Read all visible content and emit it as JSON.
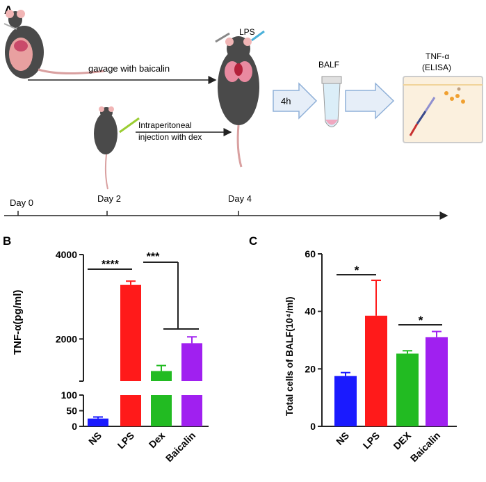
{
  "panels": {
    "a": "A",
    "b": "B",
    "c": "C"
  },
  "workflow": {
    "gavage_label": "gavage with baicalin",
    "ip_label_1": "Intraperitoneal",
    "ip_label_2": "injection with dex",
    "lps_label": "LPS",
    "time_label": "4h",
    "balf_label": "BALF",
    "tnf_label": "TNF-α",
    "elisa_label": "(ELISA)",
    "days": [
      "Day 0",
      "Day 2",
      "Day 4"
    ]
  },
  "chart_data": [
    {
      "type": "bar",
      "ylabel": "TNF-α(pg/ml)",
      "categories": [
        "NS",
        "LPS",
        "Dex",
        "Baicalin"
      ],
      "values": [
        25,
        3280,
        1240,
        1900
      ],
      "errors": [
        5,
        90,
        130,
        150
      ],
      "colors": [
        "#1a1aff",
        "#ff1a1a",
        "#22bb22",
        "#a020f0"
      ],
      "y_break": {
        "lower": [
          0,
          100
        ],
        "upper": [
          1000,
          4000
        ]
      },
      "lower_ticks": [
        0,
        50,
        100
      ],
      "upper_ticks": [
        2000,
        4000
      ],
      "significance": [
        {
          "label": "****",
          "from": "NS",
          "to": "LPS"
        },
        {
          "label": "***",
          "from": "LPS",
          "to": [
            "Dex",
            "Baicalin"
          ]
        }
      ]
    },
    {
      "type": "bar",
      "ylabel": "Total cells of BALF(10⁴/ml)",
      "categories": [
        "NS",
        "LPS",
        "DEX",
        "Baicalin"
      ],
      "values": [
        17.5,
        38.5,
        25.3,
        31
      ],
      "errors": [
        1.2,
        12.3,
        1.0,
        2.0
      ],
      "colors": [
        "#1a1aff",
        "#ff1a1a",
        "#22bb22",
        "#a020f0"
      ],
      "ylim": [
        0,
        60
      ],
      "ticks": [
        0,
        20,
        40,
        60
      ],
      "significance": [
        {
          "label": "*",
          "from": "NS",
          "to": "LPS"
        },
        {
          "label": "*",
          "from": "DEX",
          "to": "Baicalin"
        }
      ]
    }
  ]
}
